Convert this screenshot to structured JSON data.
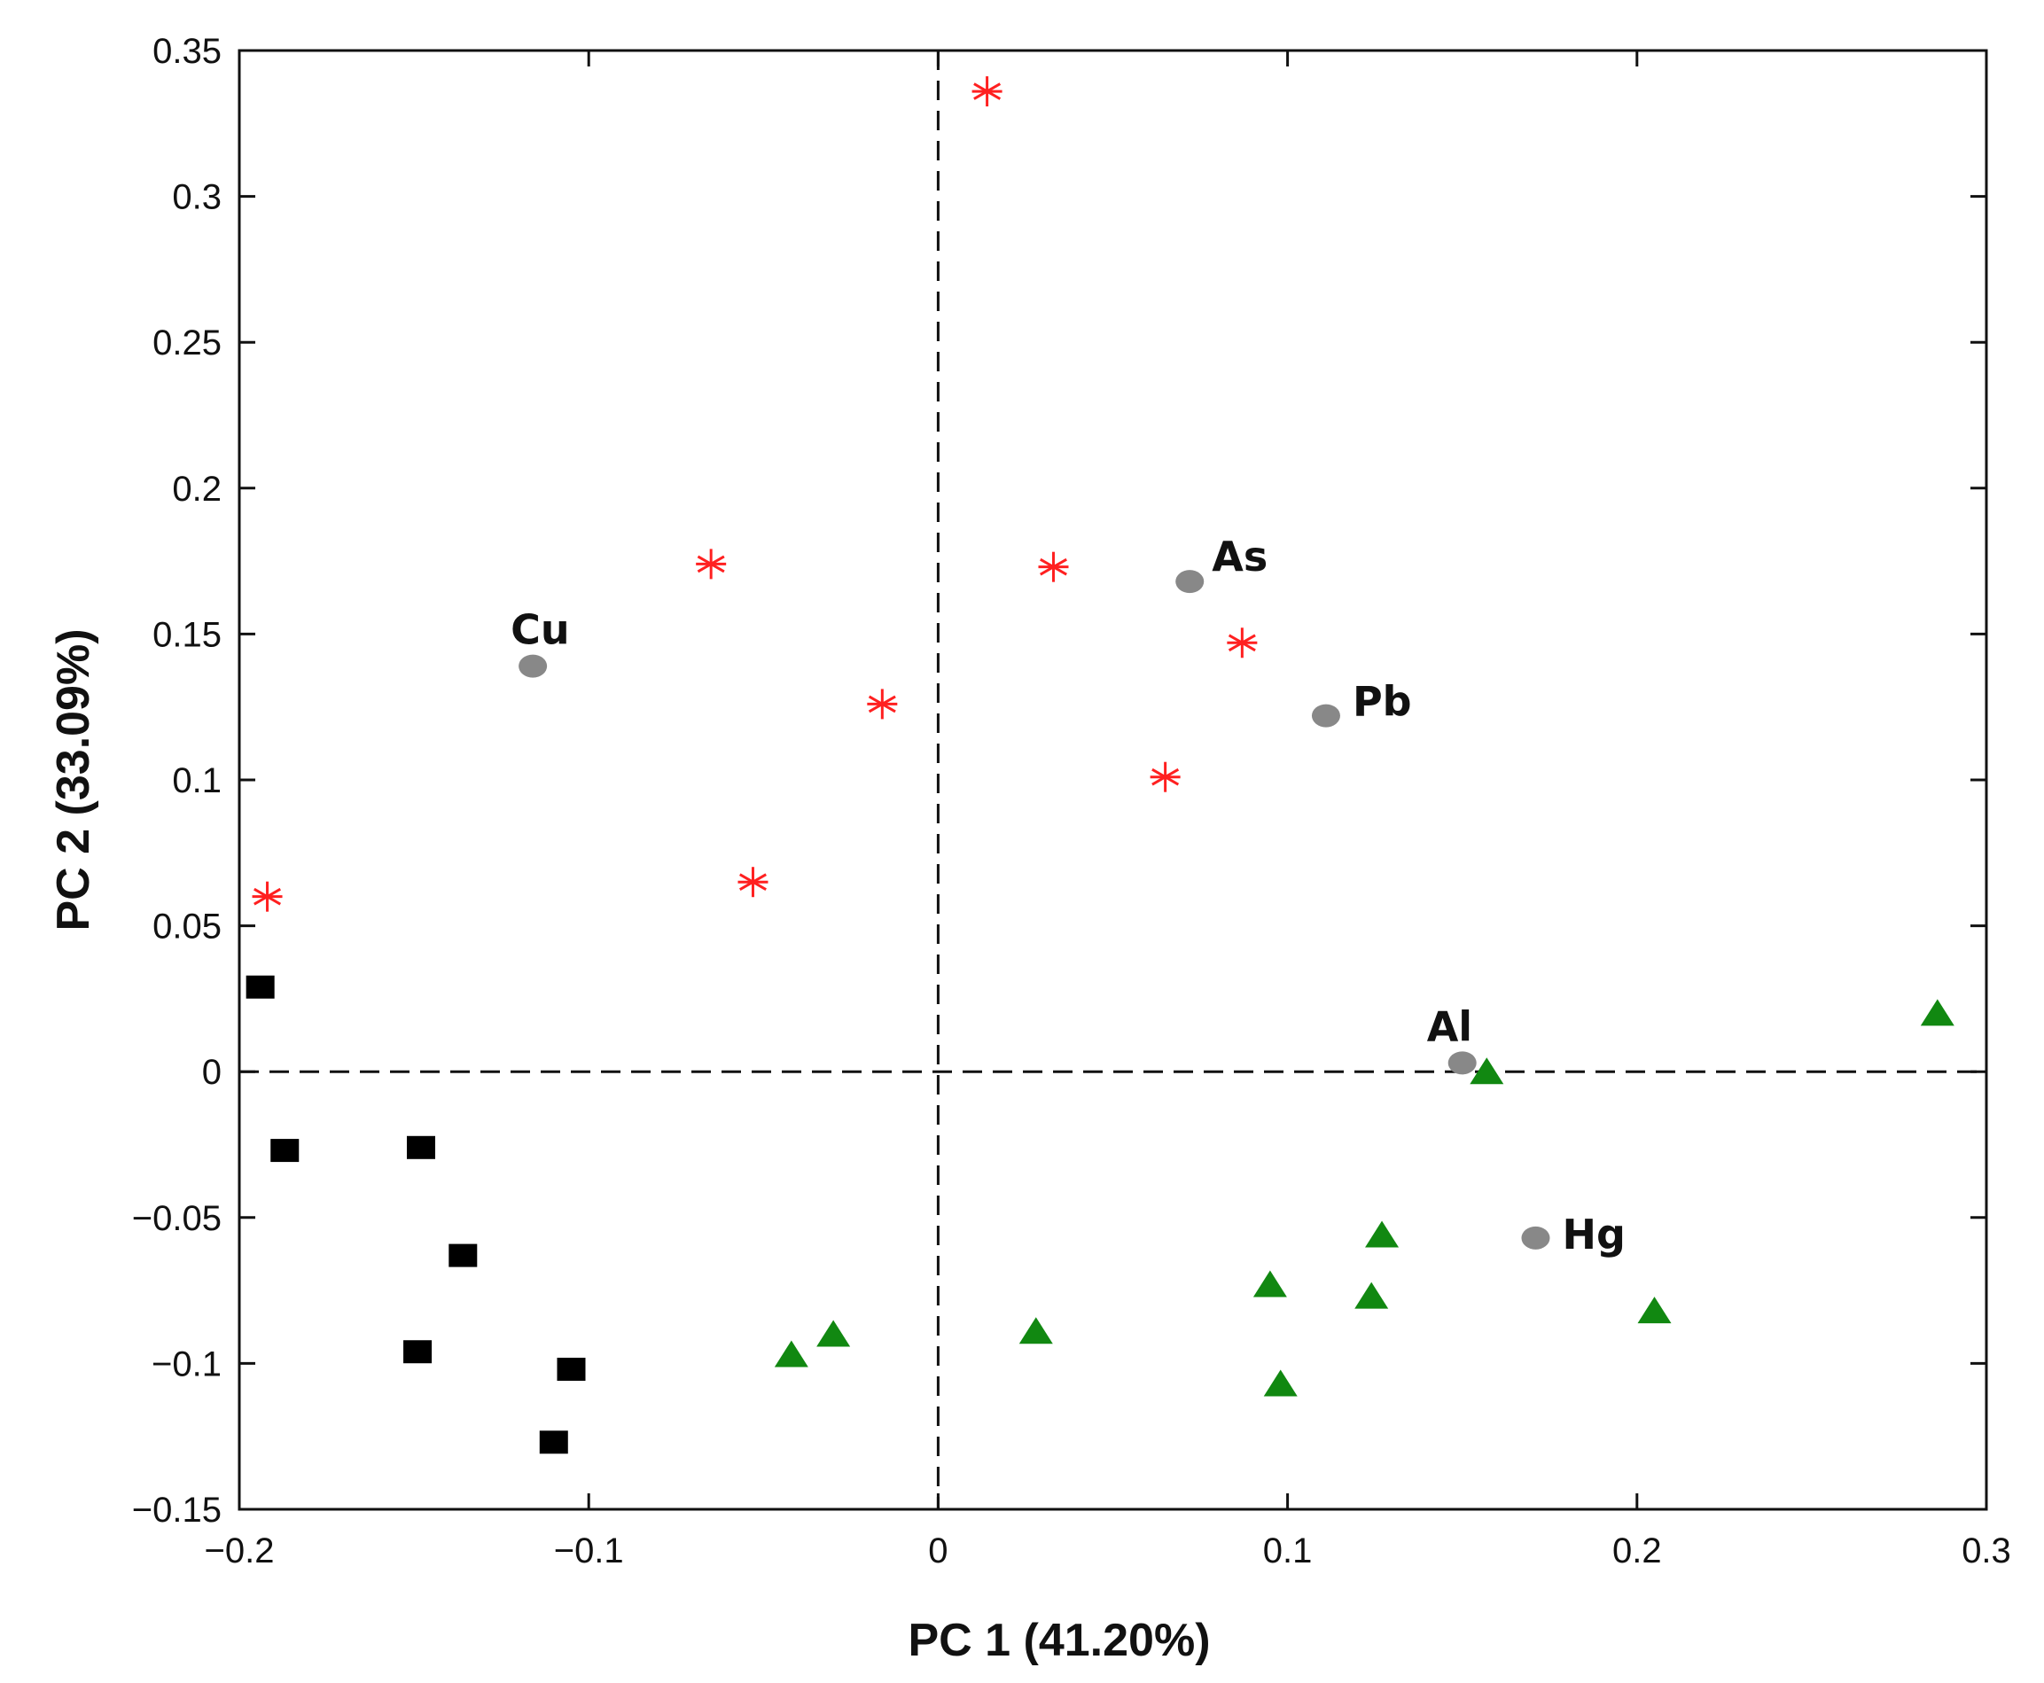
{
  "chart_data": {
    "type": "scatter",
    "title": "",
    "xlabel": "PC 1 (41.20%)",
    "ylabel": "PC 2 (33.09%)",
    "xlim": [
      -0.2,
      0.3
    ],
    "ylim": [
      -0.15,
      0.35
    ],
    "x_ticks": [
      -0.2,
      -0.1,
      0,
      0.1,
      0.2,
      0.3
    ],
    "x_tick_labels": [
      "−0.2",
      "−0.1",
      "0",
      "0.1",
      "0.2",
      "0.3"
    ],
    "y_ticks": [
      -0.15,
      -0.1,
      -0.05,
      0,
      0.05,
      0.1,
      0.15,
      0.2,
      0.25,
      0.3,
      0.35
    ],
    "y_tick_labels": [
      "−0.15",
      "−0.1",
      "−0.05",
      "0",
      "0.05",
      "0.1",
      "0.15",
      "0.2",
      "0.25",
      "0.3",
      "0.35"
    ],
    "grid": false,
    "reference_lines": {
      "x": 0,
      "y": 0,
      "style": "dashed"
    },
    "series": [
      {
        "name": "group-asterisk",
        "marker": "asterisk",
        "color": "#ff2020",
        "points": [
          {
            "x": 0.014,
            "y": 0.336
          },
          {
            "x": -0.065,
            "y": 0.174
          },
          {
            "x": 0.033,
            "y": 0.173
          },
          {
            "x": 0.087,
            "y": 0.147
          },
          {
            "x": -0.016,
            "y": 0.126
          },
          {
            "x": 0.065,
            "y": 0.101
          },
          {
            "x": -0.053,
            "y": 0.065
          },
          {
            "x": -0.192,
            "y": 0.06
          }
        ]
      },
      {
        "name": "group-square",
        "marker": "square",
        "color": "#000000",
        "points": [
          {
            "x": -0.194,
            "y": 0.029
          },
          {
            "x": -0.187,
            "y": -0.027
          },
          {
            "x": -0.148,
            "y": -0.026
          },
          {
            "x": -0.136,
            "y": -0.063
          },
          {
            "x": -0.149,
            "y": -0.096
          },
          {
            "x": -0.105,
            "y": -0.102
          },
          {
            "x": -0.11,
            "y": -0.127
          }
        ]
      },
      {
        "name": "group-triangle",
        "marker": "triangle",
        "color": "#118811",
        "points": [
          {
            "x": 0.286,
            "y": 0.02
          },
          {
            "x": 0.157,
            "y": 0.0
          },
          {
            "x": 0.127,
            "y": -0.056
          },
          {
            "x": 0.095,
            "y": -0.073
          },
          {
            "x": 0.124,
            "y": -0.077
          },
          {
            "x": 0.205,
            "y": -0.082
          },
          {
            "x": 0.028,
            "y": -0.089
          },
          {
            "x": -0.03,
            "y": -0.09
          },
          {
            "x": -0.042,
            "y": -0.097
          },
          {
            "x": 0.098,
            "y": -0.107
          }
        ]
      }
    ],
    "variables": {
      "marker": "circle",
      "color": "#888888",
      "points": [
        {
          "label": "Cu",
          "x": -0.116,
          "y": 0.139
        },
        {
          "label": "As",
          "x": 0.072,
          "y": 0.168
        },
        {
          "label": "Pb",
          "x": 0.111,
          "y": 0.122
        },
        {
          "label": "Al",
          "x": 0.15,
          "y": 0.003
        },
        {
          "label": "Hg",
          "x": 0.171,
          "y": -0.057
        }
      ]
    }
  }
}
